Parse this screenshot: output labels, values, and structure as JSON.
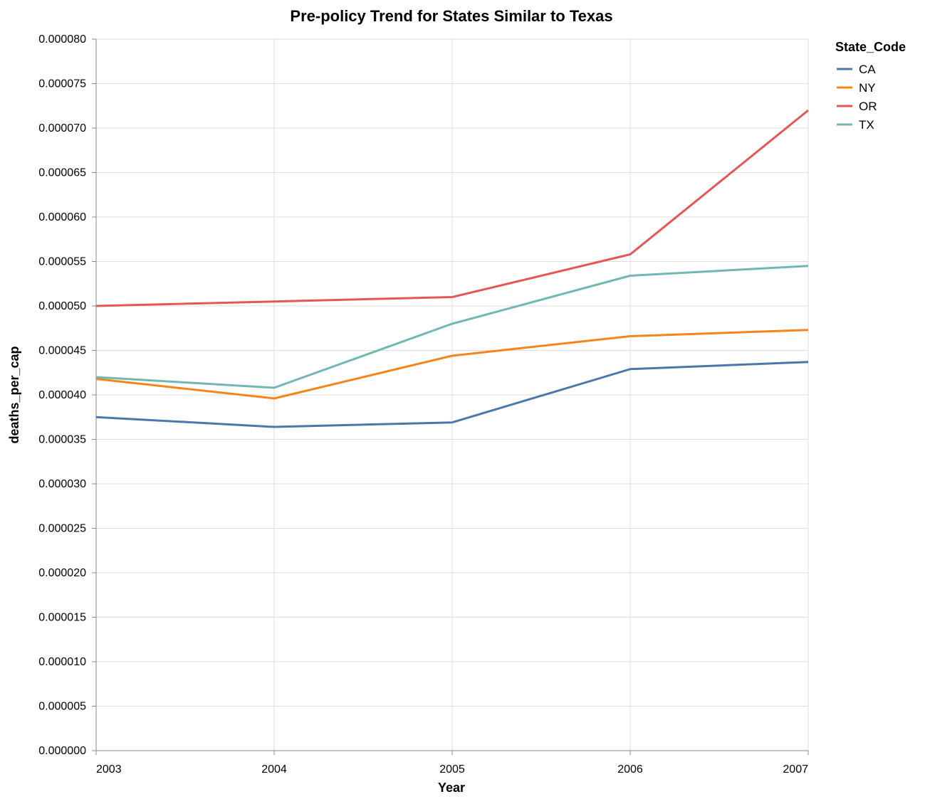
{
  "chart_data": {
    "type": "line",
    "title": "Pre-policy Trend for States Similar to Texas",
    "xlabel": "Year",
    "ylabel": "deaths_per_cap",
    "x": [
      2003,
      2004,
      2005,
      2006,
      2007
    ],
    "x_tick_labels": [
      "2003",
      "2004",
      "2005",
      "2006",
      "2007"
    ],
    "ylim": [
      0,
      8e-05
    ],
    "y_ticks": [
      0,
      5e-06,
      1e-05,
      1.5e-05,
      2e-05,
      2.5e-05,
      3e-05,
      3.5e-05,
      4e-05,
      4.5e-05,
      5e-05,
      5.5e-05,
      6e-05,
      6.5e-05,
      7e-05,
      7.5e-05,
      8e-05
    ],
    "y_tick_labels": [
      "0.000000",
      "0.000005",
      "0.000010",
      "0.000015",
      "0.000020",
      "0.000025",
      "0.000030",
      "0.000035",
      "0.000040",
      "0.000045",
      "0.000050",
      "0.000055",
      "0.000060",
      "0.000065",
      "0.000070",
      "0.000075",
      "0.000080"
    ],
    "grid": true,
    "legend": {
      "title": "State_Code",
      "position": "top-right"
    },
    "series": [
      {
        "name": "CA",
        "color": "#4c78a8",
        "values": [
          3.75e-05,
          3.64e-05,
          3.69e-05,
          4.29e-05,
          4.37e-05
        ]
      },
      {
        "name": "NY",
        "color": "#f58518",
        "values": [
          4.18e-05,
          3.96e-05,
          4.44e-05,
          4.66e-05,
          4.73e-05
        ]
      },
      {
        "name": "OR",
        "color": "#e45756",
        "values": [
          5e-05,
          5.05e-05,
          5.1e-05,
          5.58e-05,
          7.2e-05
        ]
      },
      {
        "name": "TX",
        "color": "#72b7b2",
        "values": [
          4.2e-05,
          4.08e-05,
          4.8e-05,
          5.34e-05,
          5.45e-05
        ]
      }
    ]
  }
}
